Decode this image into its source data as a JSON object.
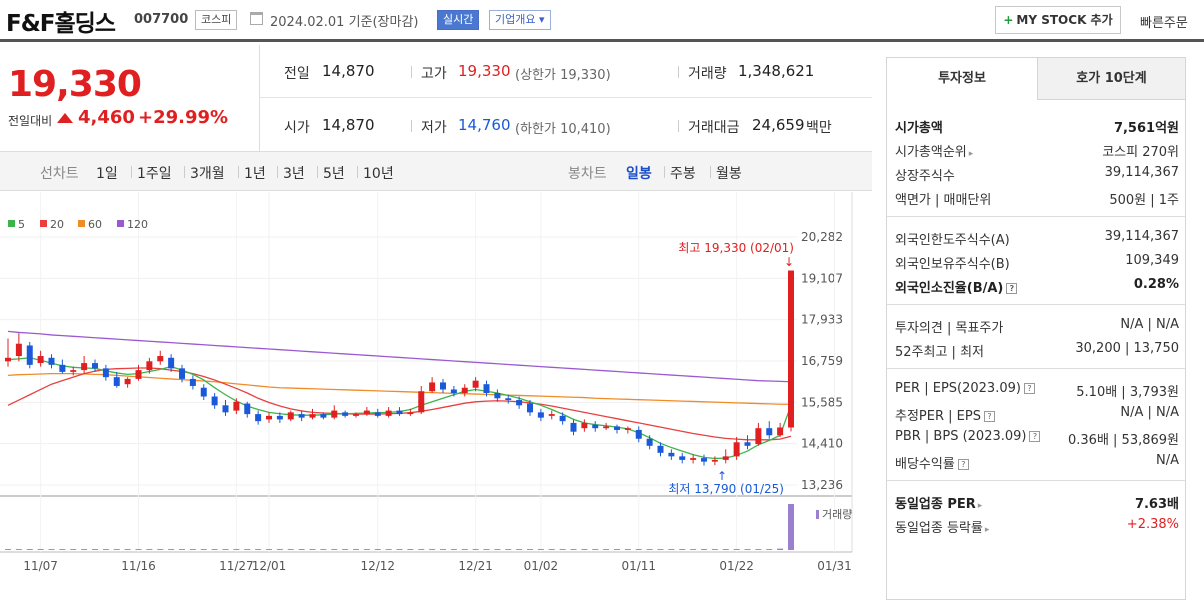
{
  "header": {
    "title": "F&F홀딩스",
    "code": "007700",
    "market_badge": "코스피",
    "date": "2024.02.01 기준(장마감)",
    "realtime_badge": "실시간",
    "company_badge": "기업개요 ▾",
    "mystock_label": "MY STOCK 추가",
    "mystock_plus": "+",
    "quick_order": "빠른주문"
  },
  "price": {
    "current": "19,330",
    "change_label": "전일대비",
    "change_amount": "4,460",
    "change_pct": "+29.99%"
  },
  "stats": {
    "prev_label": "전일",
    "prev": "14,870",
    "high_label": "고가",
    "high": "19,330",
    "high_limit": "(상한가 19,330)",
    "volume_label": "거래량",
    "volume": "1,348,621",
    "open_label": "시가",
    "open": "14,870",
    "low_label": "저가",
    "low": "14,760",
    "low_limit": "(하한가 10,410)",
    "value_label": "거래대금",
    "value": "24,659",
    "value_unit": "백만"
  },
  "tabs": {
    "line_label": "선차트",
    "line_items": [
      "1일",
      "1주일",
      "3개월",
      "1년",
      "3년",
      "5년",
      "10년"
    ],
    "candle_label": "봉차트",
    "candle_items": [
      "일봉",
      "주봉",
      "월봉"
    ],
    "candle_selected": "일봉"
  },
  "chart_data": {
    "type": "candlestick",
    "legend": [
      {
        "name": "5",
        "color": "#3cb44b"
      },
      {
        "name": "20",
        "color": "#e84040"
      },
      {
        "name": "60",
        "color": "#f08c28"
      },
      {
        "name": "120",
        "color": "#9b59d0"
      }
    ],
    "y_ticks": [
      "20,282",
      "19,107",
      "17,933",
      "16,759",
      "15,585",
      "14,410",
      "13,236"
    ],
    "ylim": [
      13236,
      20282
    ],
    "x_ticks": [
      "11/07",
      "11/16",
      "11/27",
      "12/01",
      "12/12",
      "12/21",
      "01/02",
      "01/11",
      "01/22",
      "01/31"
    ],
    "high_annotation": "최고 19,330 (02/01)",
    "low_annotation": "최저 13,790 (01/25)",
    "volume_label": "거래량",
    "candles": [
      {
        "o": 16750,
        "c": 16850,
        "h": 17400,
        "l": 16600
      },
      {
        "o": 16900,
        "c": 17250,
        "h": 17550,
        "l": 16750
      },
      {
        "o": 17200,
        "c": 16650,
        "h": 17300,
        "l": 16550
      },
      {
        "o": 16700,
        "c": 16900,
        "h": 17050,
        "l": 16600
      },
      {
        "o": 16850,
        "c": 16650,
        "h": 16950,
        "l": 16550
      },
      {
        "o": 16650,
        "c": 16450,
        "h": 16800,
        "l": 16400
      },
      {
        "o": 16450,
        "c": 16500,
        "h": 16600,
        "l": 16350
      },
      {
        "o": 16500,
        "c": 16700,
        "h": 16900,
        "l": 16400
      },
      {
        "o": 16700,
        "c": 16550,
        "h": 16800,
        "l": 16450
      },
      {
        "o": 16550,
        "c": 16300,
        "h": 16650,
        "l": 16200
      },
      {
        "o": 16300,
        "c": 16050,
        "h": 16450,
        "l": 16000
      },
      {
        "o": 16100,
        "c": 16250,
        "h": 16300,
        "l": 16000
      },
      {
        "o": 16250,
        "c": 16500,
        "h": 16650,
        "l": 16200
      },
      {
        "o": 16500,
        "c": 16750,
        "h": 16850,
        "l": 16400
      },
      {
        "o": 16750,
        "c": 16900,
        "h": 17050,
        "l": 16650
      },
      {
        "o": 16850,
        "c": 16550,
        "h": 16950,
        "l": 16450
      },
      {
        "o": 16550,
        "c": 16250,
        "h": 16650,
        "l": 16150
      },
      {
        "o": 16250,
        "c": 16050,
        "h": 16350,
        "l": 15950
      },
      {
        "o": 16000,
        "c": 15750,
        "h": 16100,
        "l": 15650
      },
      {
        "o": 15750,
        "c": 15500,
        "h": 15850,
        "l": 15400
      },
      {
        "o": 15500,
        "c": 15300,
        "h": 15650,
        "l": 15200
      },
      {
        "o": 15350,
        "c": 15600,
        "h": 15700,
        "l": 15250
      },
      {
        "o": 15550,
        "c": 15250,
        "h": 15600,
        "l": 15150
      },
      {
        "o": 15250,
        "c": 15050,
        "h": 15350,
        "l": 14950
      },
      {
        "o": 15100,
        "c": 15200,
        "h": 15300,
        "l": 15000
      },
      {
        "o": 15200,
        "c": 15100,
        "h": 15300,
        "l": 15000
      },
      {
        "o": 15100,
        "c": 15300,
        "h": 15350,
        "l": 15050
      },
      {
        "o": 15250,
        "c": 15150,
        "h": 15350,
        "l": 15050
      },
      {
        "o": 15150,
        "c": 15250,
        "h": 15400,
        "l": 15100
      },
      {
        "o": 15250,
        "c": 15150,
        "h": 15300,
        "l": 15100
      },
      {
        "o": 15150,
        "c": 15350,
        "h": 15500,
        "l": 15100
      },
      {
        "o": 15300,
        "c": 15200,
        "h": 15350,
        "l": 15150
      },
      {
        "o": 15200,
        "c": 15250,
        "h": 15300,
        "l": 15150
      },
      {
        "o": 15250,
        "c": 15350,
        "h": 15450,
        "l": 15200
      },
      {
        "o": 15300,
        "c": 15200,
        "h": 15400,
        "l": 15150
      },
      {
        "o": 15200,
        "c": 15350,
        "h": 15450,
        "l": 15150
      },
      {
        "o": 15350,
        "c": 15250,
        "h": 15450,
        "l": 15200
      },
      {
        "o": 15250,
        "c": 15300,
        "h": 15400,
        "l": 15200
      },
      {
        "o": 15300,
        "c": 15900,
        "h": 16050,
        "l": 15250
      },
      {
        "o": 15900,
        "c": 16150,
        "h": 16300,
        "l": 15850
      },
      {
        "o": 16150,
        "c": 15950,
        "h": 16250,
        "l": 15850
      },
      {
        "o": 15950,
        "c": 15850,
        "h": 16050,
        "l": 15750
      },
      {
        "o": 15850,
        "c": 16000,
        "h": 16100,
        "l": 15750
      },
      {
        "o": 16000,
        "c": 16200,
        "h": 16300,
        "l": 15900
      },
      {
        "o": 16100,
        "c": 15850,
        "h": 16200,
        "l": 15750
      },
      {
        "o": 15850,
        "c": 15700,
        "h": 15950,
        "l": 15600
      },
      {
        "o": 15700,
        "c": 15650,
        "h": 15800,
        "l": 15550
      },
      {
        "o": 15650,
        "c": 15500,
        "h": 15750,
        "l": 15400
      },
      {
        "o": 15550,
        "c": 15300,
        "h": 15650,
        "l": 15200
      },
      {
        "o": 15300,
        "c": 15150,
        "h": 15400,
        "l": 15050
      },
      {
        "o": 15200,
        "c": 15250,
        "h": 15350,
        "l": 15100
      },
      {
        "o": 15200,
        "c": 15050,
        "h": 15300,
        "l": 14950
      },
      {
        "o": 15000,
        "c": 14750,
        "h": 15100,
        "l": 14650
      },
      {
        "o": 14850,
        "c": 15000,
        "h": 15100,
        "l": 14750
      },
      {
        "o": 14950,
        "c": 14850,
        "h": 15050,
        "l": 14750
      },
      {
        "o": 14850,
        "c": 14900,
        "h": 15000,
        "l": 14800
      },
      {
        "o": 14900,
        "c": 14800,
        "h": 14950,
        "l": 14700
      },
      {
        "o": 14800,
        "c": 14850,
        "h": 14900,
        "l": 14700
      },
      {
        "o": 14800,
        "c": 14550,
        "h": 14900,
        "l": 14450
      },
      {
        "o": 14550,
        "c": 14350,
        "h": 14650,
        "l": 14250
      },
      {
        "o": 14350,
        "c": 14150,
        "h": 14450,
        "l": 14050
      },
      {
        "o": 14150,
        "c": 14050,
        "h": 14250,
        "l": 13950
      },
      {
        "o": 14050,
        "c": 13950,
        "h": 14150,
        "l": 13850
      },
      {
        "o": 13950,
        "c": 14000,
        "h": 14100,
        "l": 13850
      },
      {
        "o": 14000,
        "c": 13900,
        "h": 14100,
        "l": 13790
      },
      {
        "o": 13900,
        "c": 13950,
        "h": 14050,
        "l": 13800
      },
      {
        "o": 13950,
        "c": 14050,
        "h": 14250,
        "l": 13850
      },
      {
        "o": 14050,
        "c": 14450,
        "h": 14600,
        "l": 13950
      },
      {
        "o": 14450,
        "c": 14350,
        "h": 14650,
        "l": 14250
      },
      {
        "o": 14400,
        "c": 14850,
        "h": 15000,
        "l": 14350
      },
      {
        "o": 14850,
        "c": 14650,
        "h": 15050,
        "l": 14550
      },
      {
        "o": 14650,
        "c": 14870,
        "h": 15000,
        "l": 14600
      },
      {
        "o": 14870,
        "c": 19330,
        "h": 19330,
        "l": 14760
      }
    ],
    "ma5": [
      16800,
      16820,
      16850,
      16780,
      16700,
      16620,
      16580,
      16560,
      16550,
      16480,
      16420,
      16380,
      16400,
      16460,
      16520,
      16600,
      16500,
      16380,
      16220,
      16000,
      15800,
      15620,
      15480,
      15380,
      15300,
      15260,
      15230,
      15220,
      15220,
      15230,
      15250,
      15260,
      15270,
      15280,
      15290,
      15300,
      15320,
      15380,
      15500,
      15600,
      15700,
      15800,
      15900,
      15950,
      15900,
      15850,
      15780,
      15700,
      15600,
      15500,
      15380,
      15250,
      15100,
      15000,
      14950,
      14920,
      14880,
      14830,
      14720,
      14580,
      14420,
      14300,
      14200,
      14100,
      14020,
      13990,
      14000,
      14080,
      14200,
      14380,
      14500,
      14650,
      15500
    ],
    "ma20": [
      15500,
      15650,
      15800,
      15950,
      16100,
      16200,
      16300,
      16400,
      16470,
      16520,
      16540,
      16550,
      16560,
      16560,
      16540,
      16500,
      16460,
      16400,
      16320,
      16220,
      16100,
      15980,
      15850,
      15700,
      15580,
      15480,
      15400,
      15340,
      15300,
      15280,
      15270,
      15260,
      15250,
      15250,
      15250,
      15260,
      15270,
      15290,
      15330,
      15380,
      15440,
      15500,
      15560,
      15600,
      15620,
      15630,
      15620,
      15600,
      15570,
      15530,
      15480,
      15420,
      15360,
      15300,
      15240,
      15180,
      15120,
      15060,
      15000,
      14940,
      14880,
      14820,
      14760,
      14700,
      14650,
      14600,
      14560,
      14540,
      14520,
      14520,
      14520,
      14540,
      14620
    ],
    "ma60": [
      16350,
      16370,
      16380,
      16390,
      16400,
      16400,
      16400,
      16390,
      16380,
      16370,
      16350,
      16330,
      16310,
      16290,
      16270,
      16250,
      16230,
      16210,
      16190,
      16170,
      16140,
      16110,
      16080,
      16050,
      16020,
      16000,
      15990,
      15980,
      15970,
      15960,
      15950,
      15940,
      15930,
      15920,
      15910,
      15900,
      15890,
      15880,
      15870,
      15860,
      15850,
      15840,
      15830,
      15820,
      15810,
      15800,
      15790,
      15780,
      15770,
      15760,
      15750,
      15740,
      15730,
      15720,
      15700,
      15690,
      15680,
      15670,
      15660,
      15650,
      15640,
      15630,
      15620,
      15610,
      15600,
      15590,
      15580,
      15570,
      15560,
      15550,
      15540,
      15530,
      15530
    ],
    "ma120": [
      17600,
      17570,
      17550,
      17530,
      17500,
      17480,
      17460,
      17440,
      17420,
      17400,
      17380,
      17360,
      17340,
      17320,
      17300,
      17280,
      17260,
      17240,
      17220,
      17200,
      17180,
      17160,
      17140,
      17120,
      17100,
      17080,
      17060,
      17040,
      17020,
      17000,
      16980,
      16960,
      16940,
      16920,
      16900,
      16880,
      16860,
      16840,
      16820,
      16800,
      16780,
      16760,
      16740,
      16720,
      16700,
      16680,
      16660,
      16640,
      16620,
      16600,
      16580,
      16560,
      16540,
      16520,
      16500,
      16480,
      16460,
      16440,
      16420,
      16400,
      16380,
      16360,
      16340,
      16320,
      16300,
      16280,
      16260,
      16240,
      16220,
      16200,
      16190,
      16180,
      16170
    ],
    "volume": [
      0.02,
      0.02,
      0.02,
      0.02,
      0.02,
      0.02,
      0.02,
      0.02,
      0.02,
      0.02,
      0.02,
      0.02,
      0.02,
      0.02,
      0.02,
      0.02,
      0.02,
      0.02,
      0.02,
      0.02,
      0.02,
      0.02,
      0.02,
      0.02,
      0.02,
      0.02,
      0.02,
      0.02,
      0.02,
      0.02,
      0.02,
      0.02,
      0.02,
      0.02,
      0.02,
      0.02,
      0.02,
      0.02,
      0.02,
      0.02,
      0.02,
      0.02,
      0.02,
      0.02,
      0.02,
      0.02,
      0.02,
      0.02,
      0.02,
      0.02,
      0.02,
      0.02,
      0.02,
      0.02,
      0.02,
      0.02,
      0.02,
      0.02,
      0.02,
      0.02,
      0.02,
      0.02,
      0.02,
      0.02,
      0.02,
      0.02,
      0.02,
      0.02,
      0.02,
      0.02,
      0.02,
      0.03,
      1.0
    ]
  },
  "panel": {
    "tab_invest": "투자정보",
    "tab_order": "호가 10단계",
    "rows1": [
      {
        "k": "시가총액",
        "v": "7,561억원",
        "bold": true
      },
      {
        "k": "시가총액순위",
        "v": "코스피 270위",
        "arrow": true
      },
      {
        "k": "상장주식수",
        "v": "39,114,367"
      },
      {
        "k": "액면가 | 매매단위",
        "v": "500원 | 1주"
      }
    ],
    "rows2": [
      {
        "k": "외국인한도주식수(A)",
        "v": "39,114,367"
      },
      {
        "k": "외국인보유주식수(B)",
        "v": "109,349"
      },
      {
        "k": "외국인소진율(B/A)",
        "v": "0.28%",
        "bold": true,
        "q": true
      }
    ],
    "rows3": [
      {
        "k": "투자의견 | 목표주가",
        "v": "N/A | N/A"
      },
      {
        "k": "52주최고 | 최저",
        "v": "30,200 | 13,750"
      }
    ],
    "rows4": [
      {
        "k": "PER | EPS(2023.09)",
        "v": "5.10배 | 3,793원",
        "q": true
      },
      {
        "k": "추정PER | EPS",
        "v": "N/A | N/A",
        "q": true
      },
      {
        "k": "PBR | BPS (2023.09)",
        "v": "0.36배 | 53,869원",
        "q": true
      },
      {
        "k": "배당수익률",
        "v": "N/A",
        "q": true
      }
    ],
    "rows5": [
      {
        "k": "동일업종 PER",
        "v": "7.63배",
        "bold": true,
        "arrow": true
      },
      {
        "k": "동일업종 등락률",
        "v": "+2.38%",
        "red": true,
        "arrow": true
      }
    ]
  }
}
